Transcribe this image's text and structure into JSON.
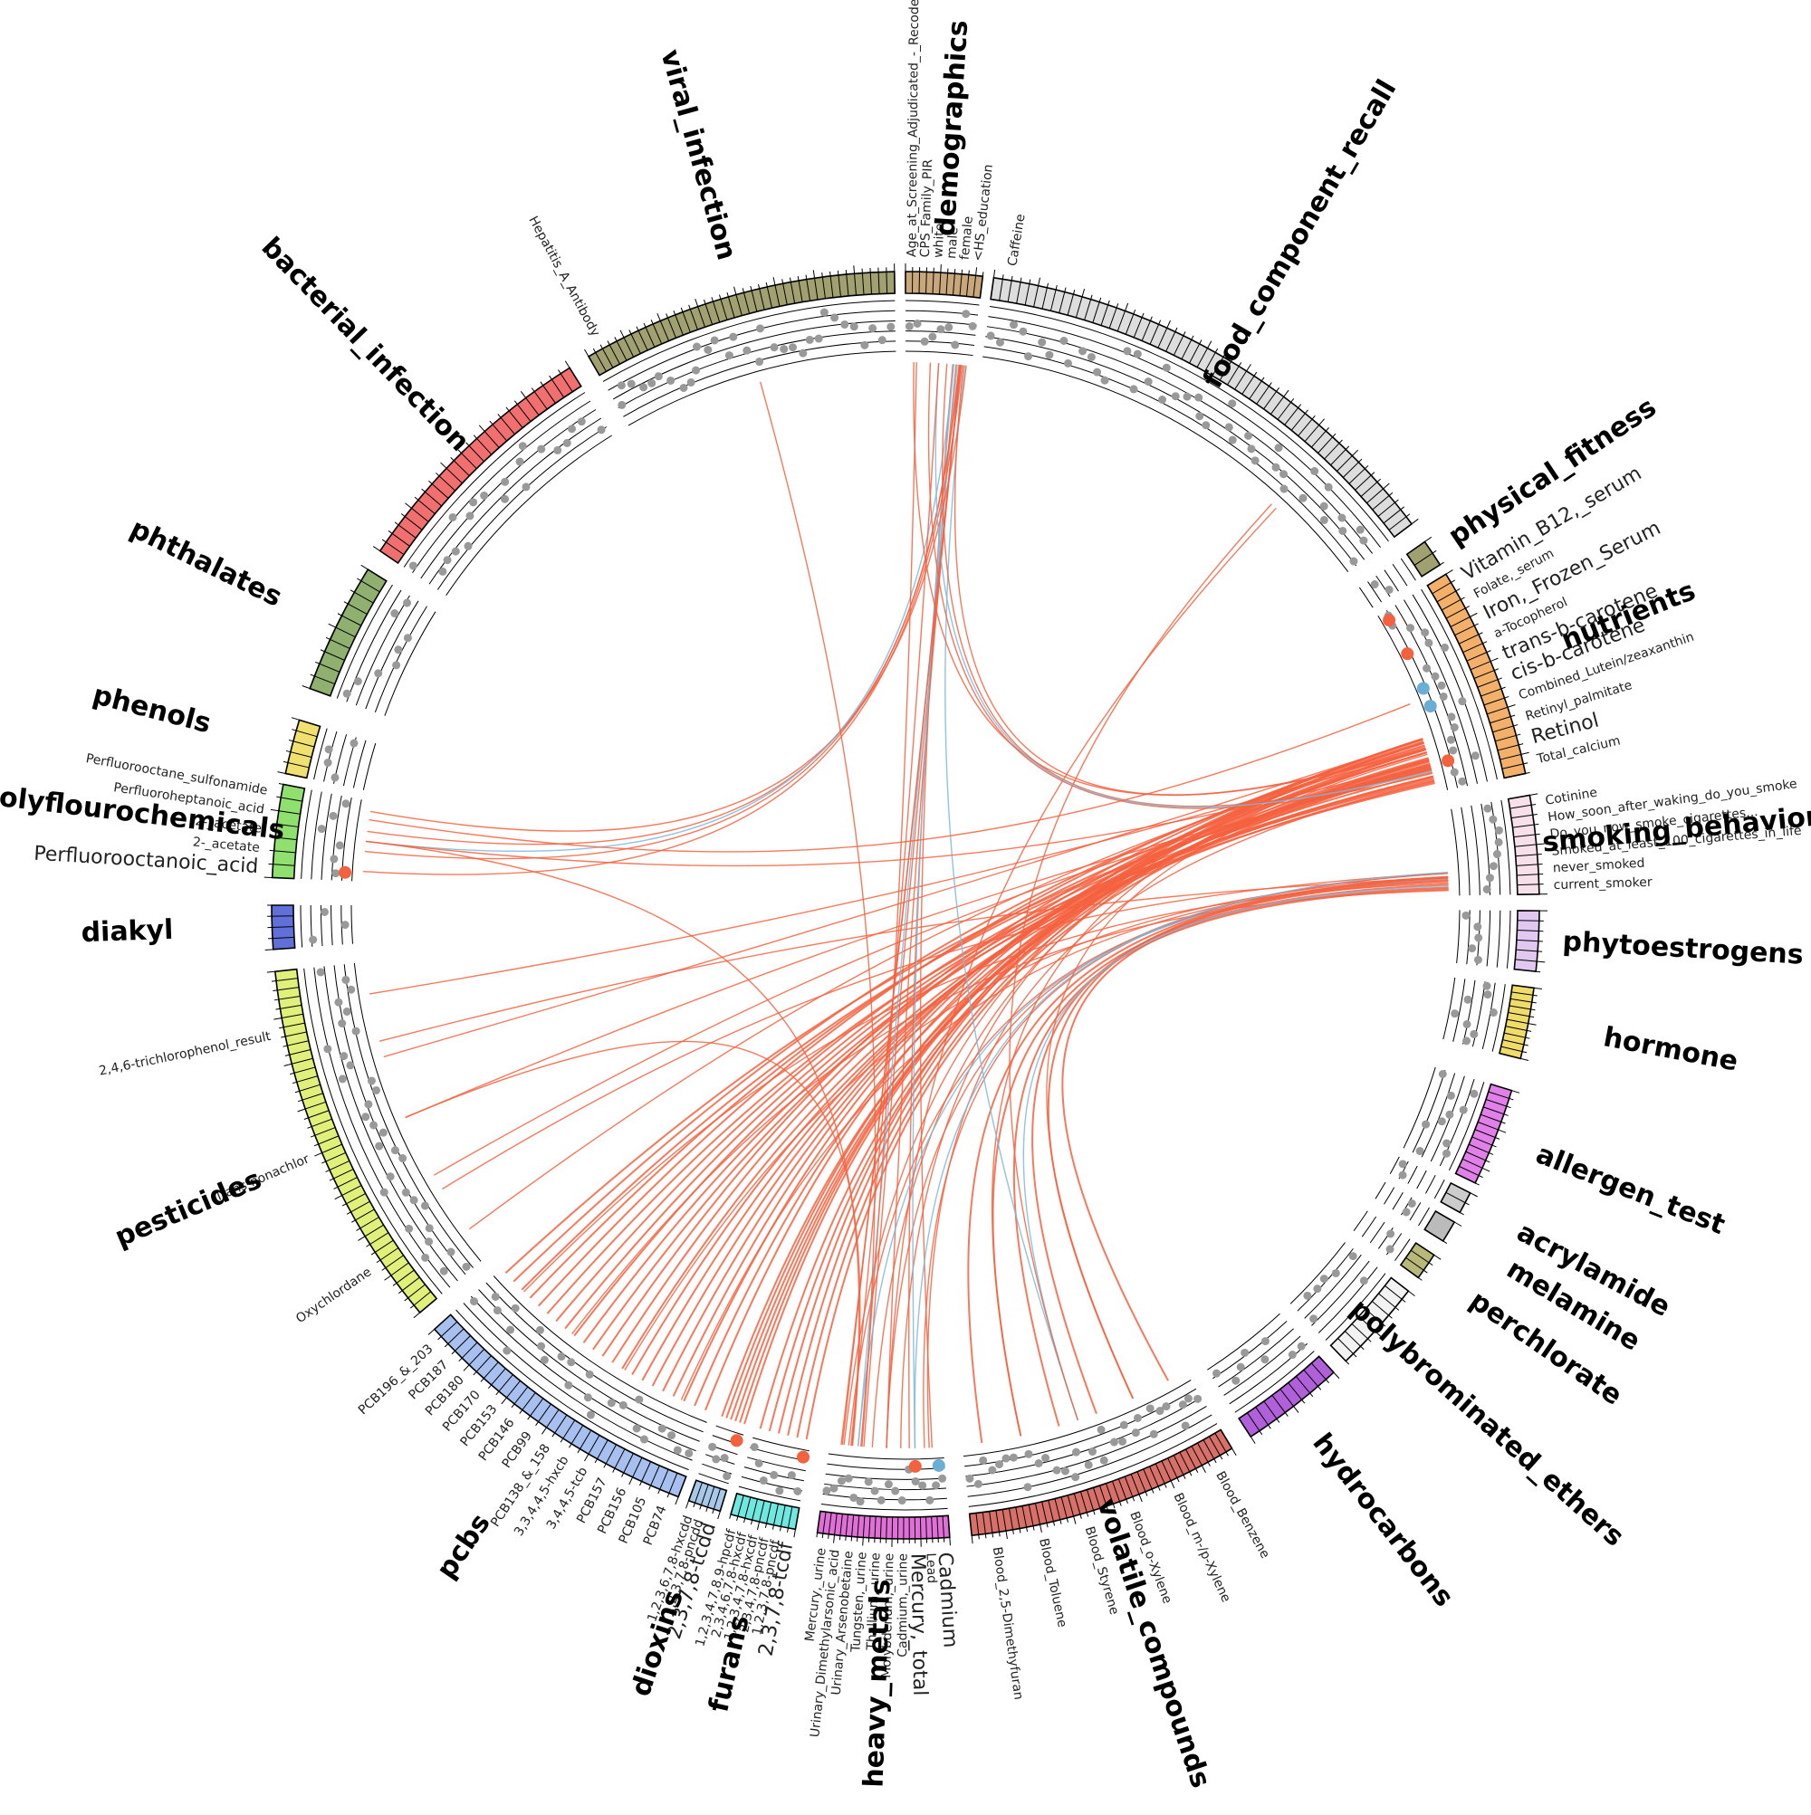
{
  "colors": {
    "link_positive": "#f4613f",
    "link_negative": "#7db8dc",
    "point_default": "#999999",
    "highlight_positive": "#f4613f",
    "highlight_negative": "#6aaed6",
    "track_line": "#000000"
  },
  "categories": [
    {
      "id": "demographics",
      "label": "demographics",
      "color": "#c8a87a",
      "n": 11
    },
    {
      "id": "food_component_recall",
      "label": "food_component_recall",
      "color": "#dddddd",
      "n": 55
    },
    {
      "id": "physical_fitness",
      "label": "physical_fitness",
      "color": "#a0a070",
      "n": 2
    },
    {
      "id": "nutrients",
      "label": "nutrients",
      "color": "#f2b06a",
      "n": 22
    },
    {
      "id": "smoking_behavior",
      "label": "smoking_behavior",
      "color": "#f7e0ea",
      "n": 10
    },
    {
      "id": "phytoestrogens",
      "label": "phytoestrogens",
      "color": "#e0c8f0",
      "n": 6
    },
    {
      "id": "hormone",
      "label": "hormone",
      "color": "#f0dc6a",
      "n": 10
    },
    {
      "id": "allergen_test",
      "label": "allergen_test",
      "color": "#e080e8",
      "n": 12
    },
    {
      "id": "acrylamide",
      "label": "acrylamide",
      "color": "#cccccc",
      "n": 2
    },
    {
      "id": "melamine",
      "label": "melamine",
      "color": "#bbbbbb",
      "n": 1
    },
    {
      "id": "perchlorate",
      "label": "perchlorate",
      "color": "#b8b878",
      "n": 3
    },
    {
      "id": "polybrominated_ethers",
      "label": "polybrominated_ethers",
      "color": "#f2f2f2",
      "n": 9
    },
    {
      "id": "hydrocarbons",
      "label": "hydrocarbons",
      "color": "#b060d8",
      "n": 10
    },
    {
      "id": "volatile_compounds",
      "label": "volatile_compounds",
      "color": "#d8706a",
      "n": 40
    },
    {
      "id": "heavy_metals",
      "label": "heavy_metals",
      "color": "#e070d8",
      "n": 23
    },
    {
      "id": "furans",
      "label": "furans",
      "color": "#70e8e0",
      "n": 9
    },
    {
      "id": "dioxins",
      "label": "dioxins",
      "color": "#a8c8e8",
      "n": 5
    },
    {
      "id": "pcbs",
      "label": "pcbs",
      "color": "#a8c0f0",
      "n": 30
    },
    {
      "id": "pesticides",
      "label": "pesticides",
      "color": "#e0f07a",
      "n": 40
    },
    {
      "id": "diakyl",
      "label": "diakyl",
      "color": "#6070d8",
      "n": 4
    },
    {
      "id": "polyflourochemicals",
      "label": "polyflourochemicals",
      "color": "#90e070",
      "n": 7
    },
    {
      "id": "phenols",
      "label": "phenols",
      "color": "#f0e070",
      "n": 5
    },
    {
      "id": "phthalates",
      "label": "phthalates",
      "color": "#90b070",
      "n": 10
    },
    {
      "id": "bacterial_infection",
      "label": "bacterial_infection",
      "color": "#f07070",
      "n": 25
    },
    {
      "id": "viral_infection",
      "label": "viral_infection",
      "color": "#a0a070",
      "n": 40
    }
  ],
  "variable_labels": [
    {
      "category": "demographics",
      "text": "Age_at_Screening_Adjudicated_-_Recode",
      "style": "normal"
    },
    {
      "category": "demographics",
      "text": "CPS_Family_PIR",
      "style": "normal"
    },
    {
      "category": "demographics",
      "text": "white",
      "style": "normal"
    },
    {
      "category": "demographics",
      "text": "male",
      "style": "normal"
    },
    {
      "category": "demographics",
      "text": "female",
      "style": "normal"
    },
    {
      "category": "demographics",
      "text": "<HS_education",
      "style": "normal"
    },
    {
      "category": "food_component_recall",
      "text": "Caffeine",
      "style": "normal"
    },
    {
      "category": "nutrients",
      "text": "Vitamin_B12,_serum",
      "style": "positive"
    },
    {
      "category": "nutrients",
      "text": "Folate,_serum",
      "style": "normal"
    },
    {
      "category": "nutrients",
      "text": "Iron,_Frozen_Serum",
      "style": "positive"
    },
    {
      "category": "nutrients",
      "text": "a-Tocopherol",
      "style": "normal"
    },
    {
      "category": "nutrients",
      "text": "trans-b-carotene",
      "style": "negative"
    },
    {
      "category": "nutrients",
      "text": "cis-b-carotene",
      "style": "negative"
    },
    {
      "category": "nutrients",
      "text": "Combined_Lutein/zeaxanthin",
      "style": "normal"
    },
    {
      "category": "nutrients",
      "text": "Retinyl_palmitate",
      "style": "normal"
    },
    {
      "category": "nutrients",
      "text": "Retinol",
      "style": "positive"
    },
    {
      "category": "nutrients",
      "text": "Total_calcium",
      "style": "normal"
    },
    {
      "category": "smoking_behavior",
      "text": "Cotinine",
      "style": "normal"
    },
    {
      "category": "smoking_behavior",
      "text": "How_soon_after_waking_do_you_smoke",
      "style": "normal"
    },
    {
      "category": "smoking_behavior",
      "text": "Do_you_now_smoke_cigarettes...",
      "style": "normal"
    },
    {
      "category": "smoking_behavior",
      "text": "Smoked_at_least_100_cigarettes_in_life",
      "style": "normal"
    },
    {
      "category": "smoking_behavior",
      "text": "never_smoked",
      "style": "normal"
    },
    {
      "category": "smoking_behavior",
      "text": "current_smoker",
      "style": "normal"
    },
    {
      "category": "volatile_compounds",
      "text": "Blood_Benzene",
      "style": "normal"
    },
    {
      "category": "volatile_compounds",
      "text": "Blood_m-/p-Xylene",
      "style": "normal"
    },
    {
      "category": "volatile_compounds",
      "text": "Blood_o-Xylene",
      "style": "normal"
    },
    {
      "category": "volatile_compounds",
      "text": "Blood_Styrene",
      "style": "normal"
    },
    {
      "category": "volatile_compounds",
      "text": "Blood_Toluene",
      "style": "normal"
    },
    {
      "category": "volatile_compounds",
      "text": "Blood_2,5-Dimethyfuran",
      "style": "normal"
    },
    {
      "category": "heavy_metals",
      "text": "Cadmium",
      "style": "negative"
    },
    {
      "category": "heavy_metals",
      "text": "Lead",
      "style": "normal"
    },
    {
      "category": "heavy_metals",
      "text": "Mercury,_total",
      "style": "positive"
    },
    {
      "category": "heavy_metals",
      "text": "Cadmium,_urine",
      "style": "normal"
    },
    {
      "category": "heavy_metals",
      "text": "Molybdenum,_urine",
      "style": "normal"
    },
    {
      "category": "heavy_metals",
      "text": "Thallium,_urine",
      "style": "normal"
    },
    {
      "category": "heavy_metals",
      "text": "Tungsten,_urine",
      "style": "normal"
    },
    {
      "category": "heavy_metals",
      "text": "Urinary_Arsenobetaine",
      "style": "normal"
    },
    {
      "category": "heavy_metals",
      "text": "Urinary_Dimethylarsonic_acid",
      "style": "normal"
    },
    {
      "category": "heavy_metals",
      "text": "Mercury,_urine",
      "style": "normal"
    },
    {
      "category": "furans",
      "text": "2,3,7,8-tcdf",
      "style": "positive"
    },
    {
      "category": "furans",
      "text": "1,2,3,7,8-pncdf",
      "style": "normal"
    },
    {
      "category": "furans",
      "text": "2,3,4,7,8-pncdf",
      "style": "normal"
    },
    {
      "category": "furans",
      "text": "1,2,3,4,7,8-hxcdf",
      "style": "normal"
    },
    {
      "category": "furans",
      "text": "2,3,4,6,7,8-hxcdf",
      "style": "normal"
    },
    {
      "category": "furans",
      "text": "1,2,3,4,7,8,9-hpcdf",
      "style": "normal"
    },
    {
      "category": "dioxins",
      "text": "2,3,7,8-tcdd",
      "style": "positive"
    },
    {
      "category": "dioxins",
      "text": "1,2,3,7,8-pncdd",
      "style": "normal"
    },
    {
      "category": "dioxins",
      "text": "1,2,3,6,7,8-hxcdd",
      "style": "normal"
    },
    {
      "category": "pcbs",
      "text": "PCB74",
      "style": "normal"
    },
    {
      "category": "pcbs",
      "text": "PCB105",
      "style": "normal"
    },
    {
      "category": "pcbs",
      "text": "PCB156",
      "style": "normal"
    },
    {
      "category": "pcbs",
      "text": "PCB157",
      "style": "normal"
    },
    {
      "category": "pcbs",
      "text": "3,4,4,5-tcb",
      "style": "normal"
    },
    {
      "category": "pcbs",
      "text": "3,3,4,4,5-hxcb",
      "style": "normal"
    },
    {
      "category": "pcbs",
      "text": "PCB138_&_158",
      "style": "normal"
    },
    {
      "category": "pcbs",
      "text": "PCB99",
      "style": "normal"
    },
    {
      "category": "pcbs",
      "text": "PCB146",
      "style": "normal"
    },
    {
      "category": "pcbs",
      "text": "PCB153",
      "style": "normal"
    },
    {
      "category": "pcbs",
      "text": "PCB170",
      "style": "normal"
    },
    {
      "category": "pcbs",
      "text": "PCB180",
      "style": "normal"
    },
    {
      "category": "pcbs",
      "text": "PCB187",
      "style": "normal"
    },
    {
      "category": "pcbs",
      "text": "PCB196_&_203",
      "style": "normal"
    },
    {
      "category": "pesticides",
      "text": "Oxychlordane",
      "style": "normal"
    },
    {
      "category": "pesticides",
      "text": "Trans-nonachlor",
      "style": "normal"
    },
    {
      "category": "pesticides",
      "text": "2,4,6-trichlorophenol_result",
      "style": "normal"
    },
    {
      "category": "polyflourochemicals",
      "text": "Perfluorooctanoic_acid",
      "style": "positive"
    },
    {
      "category": "polyflourochemicals",
      "text": "2-_acetate",
      "style": "normal"
    },
    {
      "category": "polyflourochemicals",
      "text": "2-_acetate",
      "style": "normal"
    },
    {
      "category": "polyflourochemicals",
      "text": "Perfluoroheptanoic_acid",
      "style": "normal"
    },
    {
      "category": "polyflourochemicals",
      "text": "Perfluorooctane_sulfonamide",
      "style": "normal"
    },
    {
      "category": "viral_infection",
      "text": "Hepatitis_A_Antibody",
      "style": "normal"
    }
  ],
  "links": [
    {
      "from": "dioxins",
      "to": "nutrients",
      "sign": "positive",
      "count": 6
    },
    {
      "from": "furans",
      "to": "nutrients",
      "sign": "positive",
      "count": 6
    },
    {
      "from": "pcbs",
      "to": "nutrients",
      "sign": "positive",
      "count": 22
    },
    {
      "from": "pcbs",
      "to": "smoking_behavior",
      "sign": "positive",
      "count": 4
    },
    {
      "from": "pesticides",
      "to": "nutrients",
      "sign": "positive",
      "count": 5
    },
    {
      "from": "pesticides",
      "to": "smoking_behavior",
      "sign": "positive",
      "count": 2
    },
    {
      "from": "heavy_metals",
      "to": "demographics",
      "sign": "positive",
      "count": 5
    },
    {
      "from": "heavy_metals",
      "to": "nutrients",
      "sign": "positive",
      "count": 4
    },
    {
      "from": "heavy_metals",
      "to": "smoking_behavior",
      "sign": "positive",
      "count": 3
    },
    {
      "from": "heavy_metals",
      "to": "demographics",
      "sign": "negative",
      "count": 2
    },
    {
      "from": "heavy_metals",
      "to": "smoking_behavior",
      "sign": "negative",
      "count": 2
    },
    {
      "from": "heavy_metals",
      "to": "food_component_recall",
      "sign": "positive",
      "count": 1
    },
    {
      "from": "volatile_compounds",
      "to": "smoking_behavior",
      "sign": "positive",
      "count": 6
    },
    {
      "from": "volatile_compounds",
      "to": "smoking_behavior",
      "sign": "negative",
      "count": 1
    },
    {
      "from": "volatile_compounds",
      "to": "nutrients",
      "sign": "positive",
      "count": 2
    },
    {
      "from": "volatile_compounds",
      "to": "demographics",
      "sign": "negative",
      "count": 1
    },
    {
      "from": "volatile_compounds",
      "to": "food_component_recall",
      "sign": "positive",
      "count": 1
    },
    {
      "from": "polyflourochemicals",
      "to": "demographics",
      "sign": "positive",
      "count": 4
    },
    {
      "from": "polyflourochemicals",
      "to": "demographics",
      "sign": "negative",
      "count": 1
    },
    {
      "from": "polyflourochemicals",
      "to": "nutrients",
      "sign": "positive",
      "count": 1
    },
    {
      "from": "polyflourochemicals",
      "to": "heavy_metals",
      "sign": "positive",
      "count": 1
    },
    {
      "from": "demographics",
      "to": "nutrients",
      "sign": "positive",
      "count": 4
    },
    {
      "from": "demographics",
      "to": "nutrients",
      "sign": "negative",
      "count": 1
    },
    {
      "from": "demographics",
      "to": "heavy_metals",
      "sign": "positive",
      "count": 3
    },
    {
      "from": "viral_infection",
      "to": "heavy_metals",
      "sign": "positive",
      "count": 1
    },
    {
      "from": "pesticides",
      "to": "heavy_metals",
      "sign": "positive",
      "count": 1
    },
    {
      "from": "nutrients",
      "to": "polyflourochemicals",
      "sign": "positive",
      "count": 1
    }
  ]
}
